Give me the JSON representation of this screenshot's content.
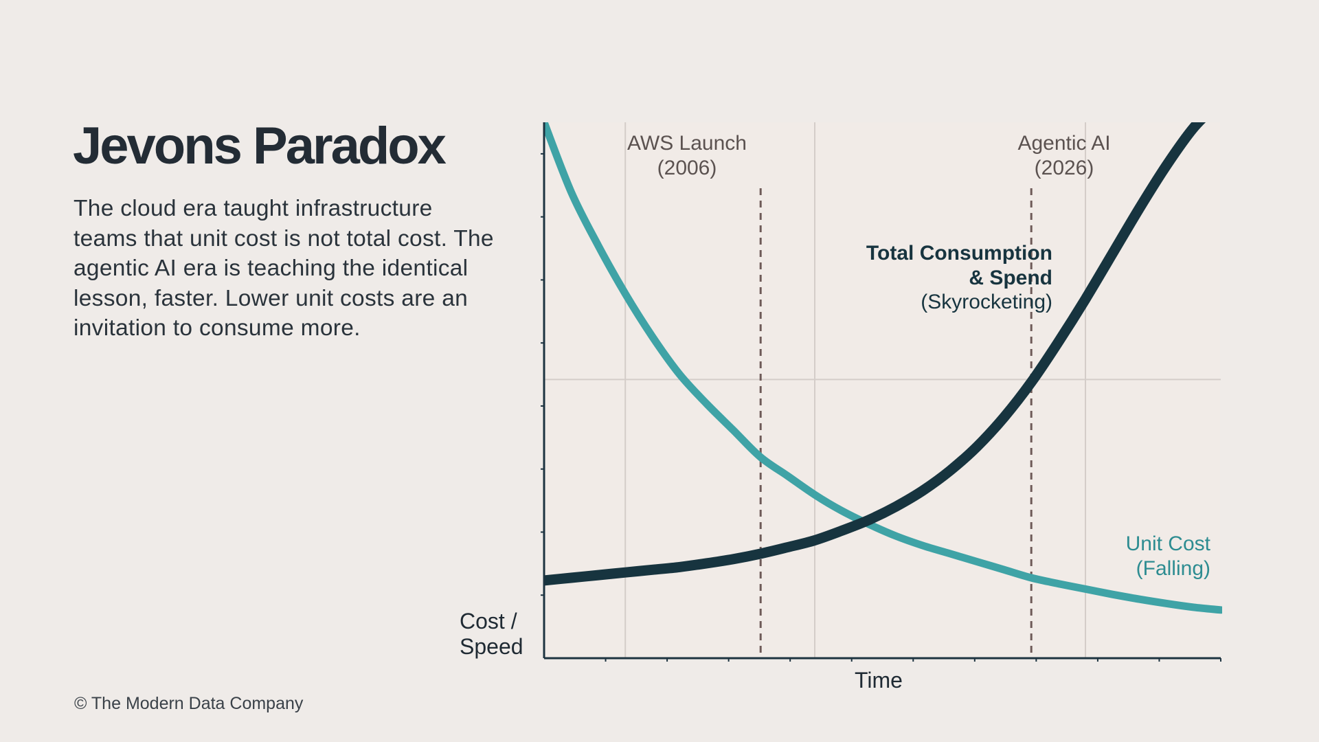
{
  "slide": {
    "title": "Jevons Paradox",
    "description": "The cloud era taught infrastructure teams that unit cost is not total cost. The agentic AI era is teaching the identical lesson, faster. Lower unit costs are an invitation to consume more.",
    "footer": "© The Modern Data Company"
  },
  "chart_data": {
    "type": "line",
    "xlabel": "Time",
    "ylabel": [
      "Cost /",
      "Speed"
    ],
    "x_domain": [
      1990,
      2040
    ],
    "y_domain": [
      0,
      100
    ],
    "grid": true,
    "series": [
      {
        "name": "Unit Cost",
        "note": "(Falling)",
        "color": "#3fa3a6",
        "x": [
          1990,
          1992,
          1994,
          1996,
          1998,
          2000,
          2002,
          2004,
          2006,
          2008,
          2010,
          2012,
          2014,
          2016,
          2018,
          2020,
          2022,
          2024,
          2026,
          2028,
          2030,
          2032,
          2034,
          2036,
          2038,
          2040
        ],
        "values": [
          100,
          87,
          77,
          68,
          60,
          53,
          47.5,
          42.5,
          37.5,
          34,
          30.5,
          27.5,
          25,
          22.8,
          21,
          19.5,
          18,
          16.5,
          15,
          13.9,
          12.9,
          11.9,
          11,
          10.2,
          9.5,
          9
        ]
      },
      {
        "name": "Total Consumption & Spend",
        "note": "(Skyrocketing)",
        "color": "#17343f",
        "x": [
          1990,
          1992,
          1994,
          1996,
          1998,
          2000,
          2002,
          2004,
          2006,
          2008,
          2010,
          2012,
          2014,
          2016,
          2018,
          2020,
          2022,
          2024,
          2026,
          2028,
          2030,
          2032,
          2034,
          2036,
          2038,
          2040
        ],
        "values": [
          14.5,
          15,
          15.5,
          16,
          16.5,
          17,
          17.7,
          18.5,
          19.5,
          20.7,
          22,
          23.8,
          25.8,
          28.3,
          31.3,
          35,
          39.5,
          45,
          51.5,
          59,
          67,
          75.5,
          84,
          92,
          99,
          104
        ]
      }
    ],
    "annotations": [
      {
        "x": 2006,
        "label": "AWS Launch",
        "sublabel": "(2006)"
      },
      {
        "x": 2026,
        "label": "Agentic AI",
        "sublabel": "(2026)"
      }
    ]
  }
}
